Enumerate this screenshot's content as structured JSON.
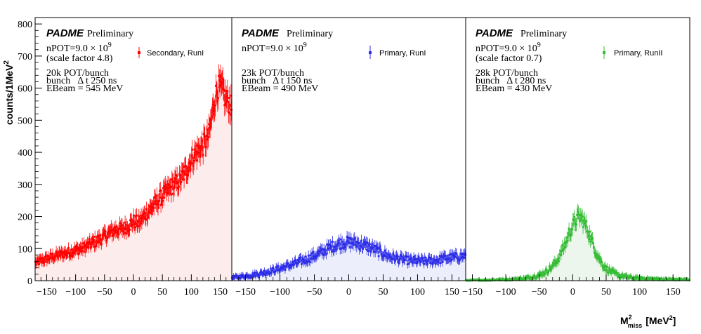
{
  "figure": {
    "ylabel": "counts/1MeV",
    "ylabel_exp": "2",
    "xlabel_main": "M",
    "xlabel_sup": "2",
    "xlabel_sub": "miss",
    "xlabel_unit_open": "[MeV",
    "xlabel_unit_exp": "2",
    "xlabel_unit_close": "]"
  },
  "chart_data": [
    {
      "type": "scatter",
      "color": "#ff0000",
      "fill": "#fdecec",
      "brand": "PADME",
      "status": "Preliminary",
      "npot": "nPOT=9.0 × 10",
      "npot_exp": "9",
      "scale_note": "(scale factor 4.8)",
      "legend": "Secondary, RunI",
      "pot_bunch": "20k POT/bunch",
      "bunch_label": "bunch",
      "delta_t": "Δ t 250 ns",
      "ebeam": "EBeam = 545 MeV",
      "x_range": [
        -170,
        170
      ],
      "ylim": [
        0,
        820
      ],
      "x_ticks": [
        -150,
        -100,
        -50,
        0,
        50,
        100,
        150
      ],
      "y_ticks": [
        0,
        100,
        200,
        300,
        400,
        500,
        600,
        700,
        800
      ],
      "points": [
        [
          -168,
          55
        ],
        [
          -160,
          62
        ],
        [
          -150,
          68
        ],
        [
          -140,
          75
        ],
        [
          -130,
          80
        ],
        [
          -120,
          85
        ],
        [
          -110,
          90
        ],
        [
          -100,
          95
        ],
        [
          -90,
          100
        ],
        [
          -80,
          108
        ],
        [
          -70,
          118
        ],
        [
          -60,
          128
        ],
        [
          -50,
          138
        ],
        [
          -40,
          150
        ],
        [
          -30,
          160
        ],
        [
          -20,
          160
        ],
        [
          -10,
          170
        ],
        [
          0,
          185
        ],
        [
          10,
          180
        ],
        [
          20,
          205
        ],
        [
          30,
          225
        ],
        [
          40,
          245
        ],
        [
          50,
          265
        ],
        [
          60,
          280
        ],
        [
          70,
          300
        ],
        [
          80,
          310
        ],
        [
          90,
          340
        ],
        [
          100,
          380
        ],
        [
          110,
          400
        ],
        [
          120,
          420
        ],
        [
          130,
          450
        ],
        [
          140,
          560
        ],
        [
          145,
          600
        ],
        [
          150,
          600
        ],
        [
          155,
          590
        ],
        [
          160,
          560
        ],
        [
          165,
          560
        ],
        [
          168,
          540
        ]
      ]
    },
    {
      "type": "scatter",
      "color": "#2b2be8",
      "fill": "#eceffb",
      "brand": "PADME",
      "status": "Preliminary",
      "npot": "nPOT=9.0 × 10",
      "npot_exp": "9",
      "scale_note": "",
      "legend": "Primary, RunI",
      "pot_bunch": "23k POT/bunch",
      "bunch_label": "bunch",
      "delta_t": "Δ t 150 ns",
      "ebeam": "EBeam = 490 MeV",
      "x_range": [
        -170,
        170
      ],
      "ylim": [
        0,
        820
      ],
      "x_ticks": [
        -150,
        -100,
        -50,
        0,
        50,
        100,
        150
      ],
      "y_ticks": [],
      "points": [
        [
          -168,
          10
        ],
        [
          -160,
          12
        ],
        [
          -150,
          15
        ],
        [
          -140,
          18
        ],
        [
          -130,
          22
        ],
        [
          -120,
          27
        ],
        [
          -110,
          32
        ],
        [
          -100,
          38
        ],
        [
          -90,
          45
        ],
        [
          -80,
          52
        ],
        [
          -70,
          60
        ],
        [
          -60,
          68
        ],
        [
          -50,
          78
        ],
        [
          -40,
          88
        ],
        [
          -30,
          100
        ],
        [
          -20,
          110
        ],
        [
          -10,
          118
        ],
        [
          0,
          120
        ],
        [
          10,
          118
        ],
        [
          20,
          112
        ],
        [
          30,
          105
        ],
        [
          40,
          95
        ],
        [
          50,
          85
        ],
        [
          60,
          75
        ],
        [
          70,
          70
        ],
        [
          80,
          65
        ],
        [
          90,
          62
        ],
        [
          100,
          62
        ],
        [
          110,
          60
        ],
        [
          120,
          62
        ],
        [
          130,
          65
        ],
        [
          140,
          70
        ],
        [
          150,
          72
        ],
        [
          160,
          75
        ],
        [
          168,
          78
        ]
      ]
    },
    {
      "type": "scatter",
      "color": "#33bb33",
      "fill": "#ecf6ec",
      "brand": "PADME",
      "status": "Preliminary",
      "npot": "nPOT=9.0 × 10",
      "npot_exp": "9",
      "scale_note": "(scale factor 0.7)",
      "legend": "Primary, RunII",
      "pot_bunch": "28k POT/bunch",
      "bunch_label": "bunch",
      "delta_t": "Δ t 280 ns",
      "ebeam": "EBeam = 430 MeV",
      "x_range": [
        -160,
        175
      ],
      "ylim": [
        0,
        820
      ],
      "x_ticks": [
        -150,
        -100,
        -50,
        0,
        50,
        100,
        150
      ],
      "y_ticks": [],
      "points": [
        [
          -160,
          0
        ],
        [
          -140,
          1
        ],
        [
          -120,
          2
        ],
        [
          -100,
          3
        ],
        [
          -90,
          4
        ],
        [
          -80,
          6
        ],
        [
          -70,
          8
        ],
        [
          -60,
          12
        ],
        [
          -50,
          18
        ],
        [
          -40,
          28
        ],
        [
          -30,
          45
        ],
        [
          -20,
          75
        ],
        [
          -10,
          120
        ],
        [
          -5,
          150
        ],
        [
          0,
          170
        ],
        [
          5,
          190
        ],
        [
          10,
          200
        ],
        [
          15,
          190
        ],
        [
          20,
          170
        ],
        [
          25,
          145
        ],
        [
          30,
          115
        ],
        [
          35,
          90
        ],
        [
          40,
          68
        ],
        [
          45,
          50
        ],
        [
          50,
          38
        ],
        [
          60,
          25
        ],
        [
          70,
          16
        ],
        [
          80,
          12
        ],
        [
          90,
          9
        ],
        [
          100,
          7
        ],
        [
          120,
          5
        ],
        [
          140,
          4
        ],
        [
          160,
          3
        ],
        [
          175,
          3
        ]
      ]
    }
  ]
}
